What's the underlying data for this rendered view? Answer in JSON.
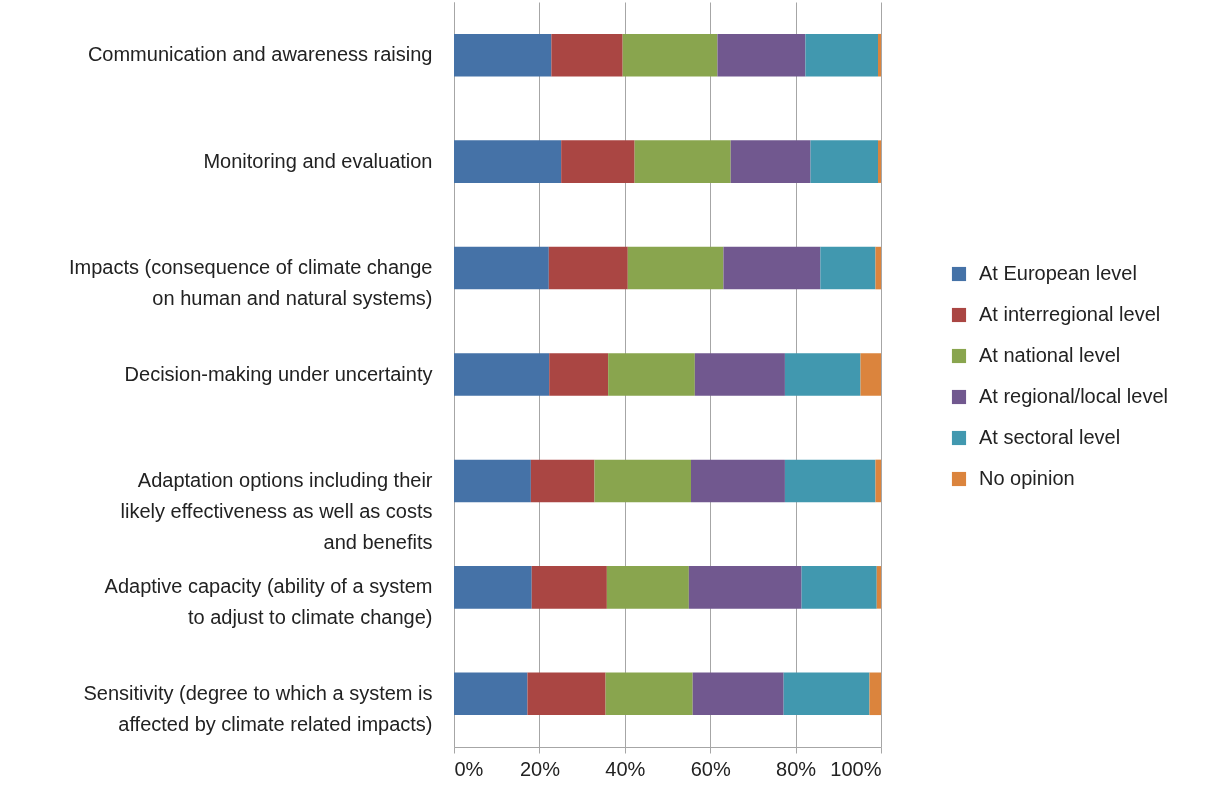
{
  "chart_data": {
    "type": "bar",
    "orientation": "horizontal",
    "stacked": true,
    "legend": "right",
    "grid": "x",
    "categories": [
      "Communication and awareness raising",
      "Monitoring and evaluation",
      "Impacts (consequence of climate change on human and natural systems)",
      "Decision-making under uncertainty",
      "Adaptation options including their likely effectiveness as well as  costs and benefits",
      "Adaptive capacity (ability of a system to adjust to climate change)",
      "Sensitivity (degree to which a system is affected by climate related impacts)"
    ],
    "series": [
      {
        "name": "At European level",
        "color": "#4572a7",
        "values": [
          22.8,
          25.1,
          22.2,
          22.3,
          18.0,
          18.2,
          17.2
        ]
      },
      {
        "name": "At interregional level",
        "color": "#aa4643",
        "values": [
          16.7,
          17.2,
          18.5,
          13.8,
          14.9,
          17.6,
          18.3
        ]
      },
      {
        "name": "At national level",
        "color": "#89a54e",
        "values": [
          22.2,
          22.5,
          22.4,
          20.3,
          22.6,
          19.2,
          20.4
        ]
      },
      {
        "name": "At regional/local level",
        "color": "#71588f",
        "values": [
          20.6,
          18.7,
          22.7,
          21.1,
          22.0,
          26.4,
          21.3
        ]
      },
      {
        "name": "At sectoral level",
        "color": "#4198af",
        "values": [
          17.0,
          15.8,
          12.9,
          17.7,
          21.2,
          17.6,
          20.1
        ]
      },
      {
        "name": "No opinion",
        "color": "#db843d",
        "values": [
          0.7,
          0.7,
          1.3,
          4.8,
          1.3,
          1.0,
          2.7
        ]
      }
    ],
    "xlim": [
      0,
      100
    ],
    "xticks": [
      {
        "value": 0,
        "label": "0%"
      },
      {
        "value": 20,
        "label": "20%"
      },
      {
        "value": 40,
        "label": "40%"
      },
      {
        "value": 60,
        "label": "60%"
      },
      {
        "value": 80,
        "label": "80%"
      },
      {
        "value": 100,
        "label": "100%"
      }
    ]
  }
}
